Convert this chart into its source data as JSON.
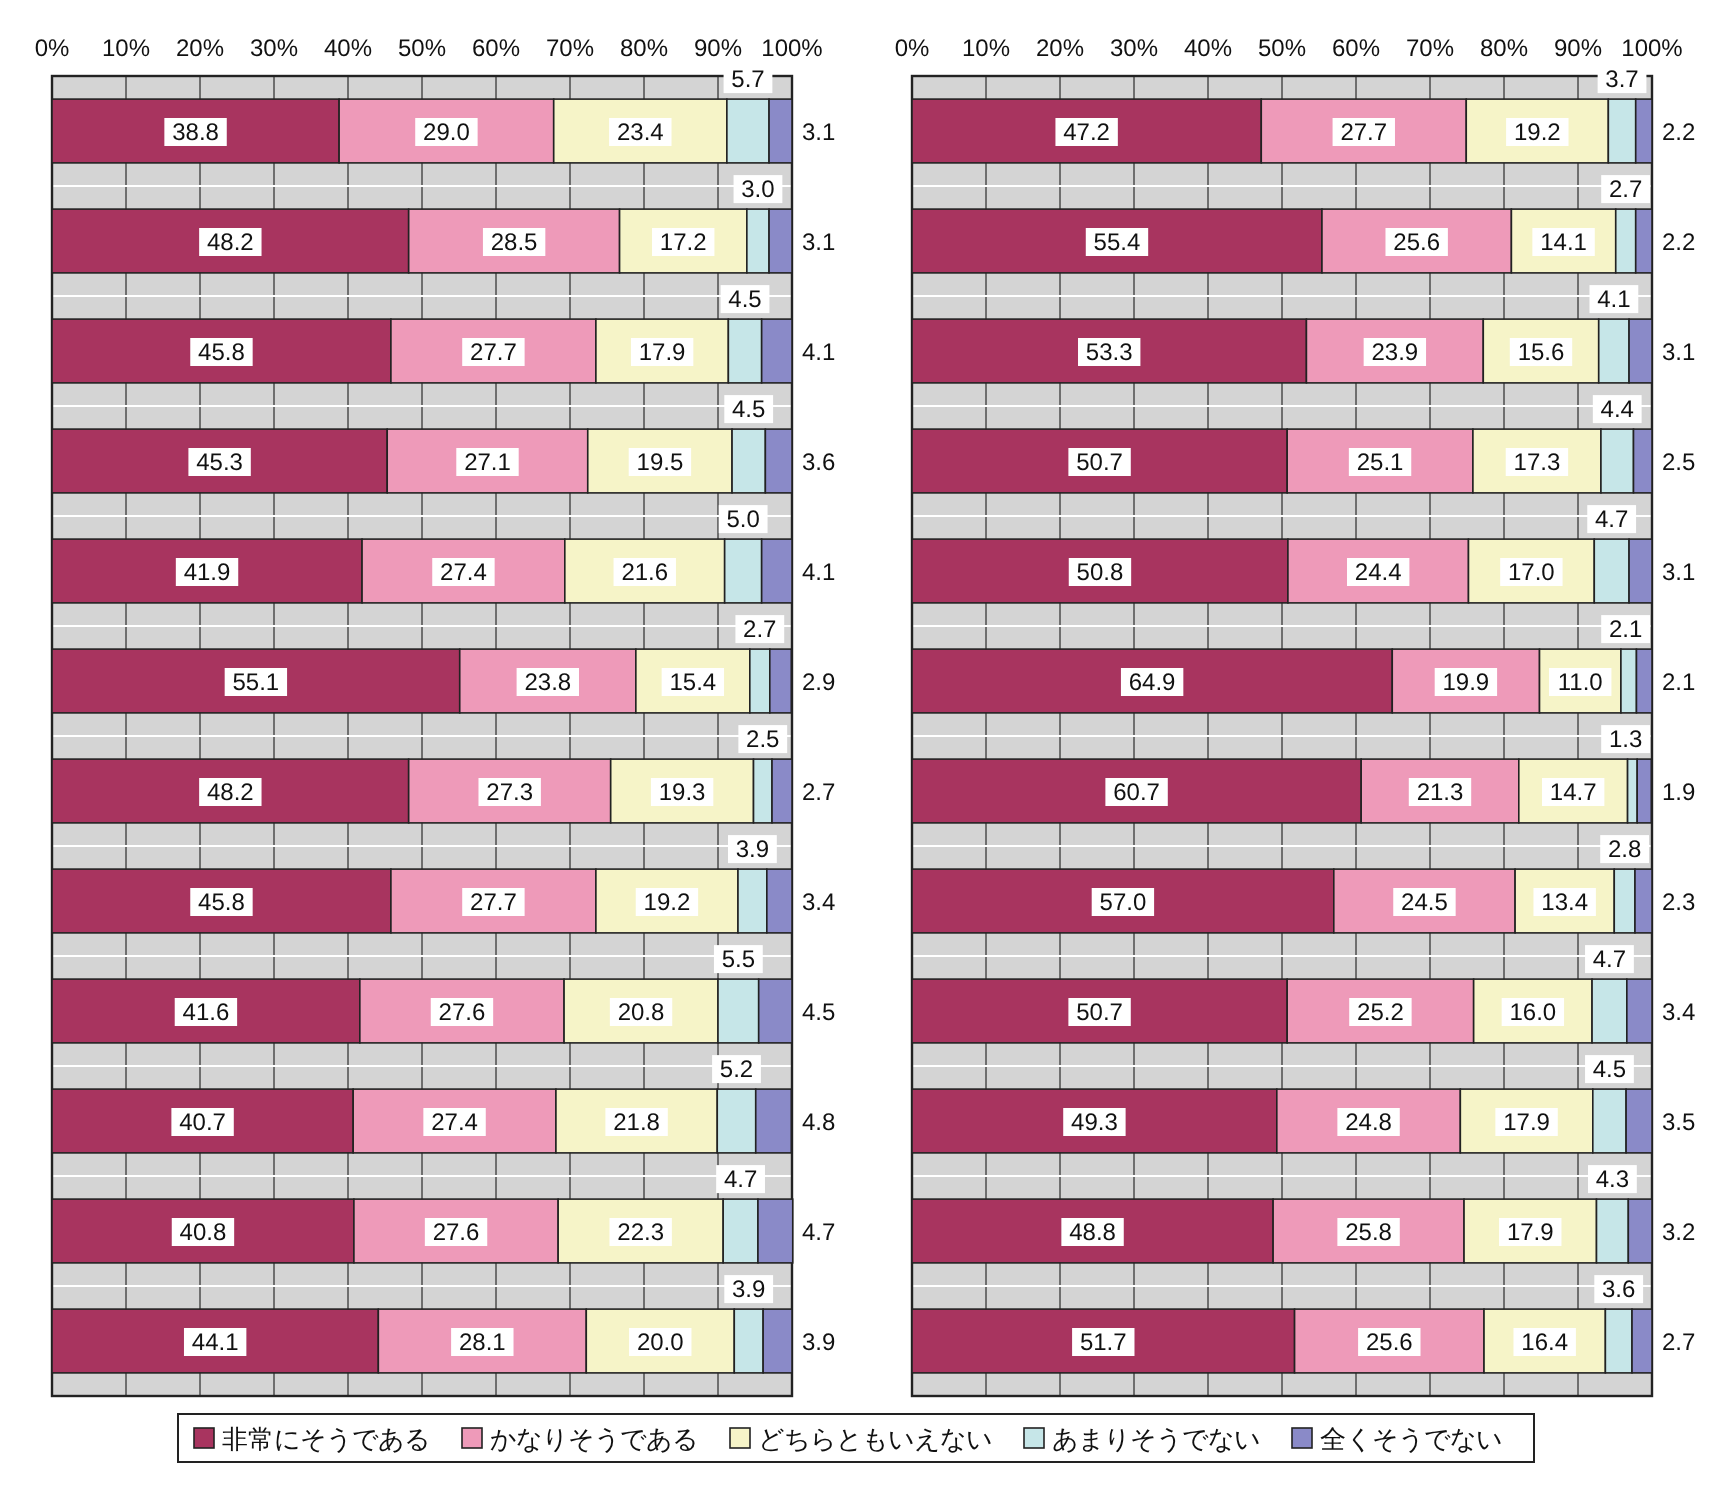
{
  "chart_data": [
    {
      "type": "bar",
      "orientation": "horizontal",
      "stacked": true,
      "grid": true,
      "legend": "bottom",
      "categories": [
        null,
        null,
        null,
        null,
        null,
        null,
        null,
        null,
        null,
        null,
        null,
        null
      ],
      "xlim": [
        0,
        100
      ],
      "xticks": [
        {
          "value": 0,
          "label": "0%"
        },
        {
          "value": 10,
          "label": "10%"
        },
        {
          "value": 20,
          "label": "20%"
        },
        {
          "value": 30,
          "label": "30%"
        },
        {
          "value": 40,
          "label": "40%"
        },
        {
          "value": 50,
          "label": "50%"
        },
        {
          "value": 60,
          "label": "60%"
        },
        {
          "value": 70,
          "label": "70%"
        },
        {
          "value": 80,
          "label": "80%"
        },
        {
          "value": 90,
          "label": "90%"
        },
        {
          "value": 100,
          "label": "100%"
        }
      ],
      "series": [
        {
          "name": "非常にそうである",
          "color": "#a8345f",
          "values": [
            38.8,
            48.2,
            45.8,
            45.3,
            41.9,
            55.1,
            48.2,
            45.8,
            41.6,
            40.7,
            40.8,
            44.1
          ],
          "value_labels": [
            "38.8",
            "48.2",
            "45.8",
            "45.3",
            "41.9",
            "55.1",
            "48.2",
            "45.8",
            "41.6",
            "40.7",
            "40.8",
            "44.1"
          ]
        },
        {
          "name": "かなりそうである",
          "color": "#ee9ab9",
          "values": [
            29.0,
            28.5,
            27.7,
            27.1,
            27.4,
            23.8,
            27.3,
            27.7,
            27.6,
            27.4,
            27.6,
            28.1
          ],
          "value_labels": [
            "29.0",
            "28.5",
            "27.7",
            "27.1",
            "27.4",
            "23.8",
            "27.3",
            "27.7",
            "27.6",
            "27.4",
            "27.6",
            "28.1"
          ]
        },
        {
          "name": "どちらともいえない",
          "color": "#f6f4c8",
          "values": [
            23.4,
            17.2,
            17.9,
            19.5,
            21.6,
            15.4,
            19.3,
            19.2,
            20.8,
            21.8,
            22.3,
            20.0
          ],
          "value_labels": [
            "23.4",
            "17.2",
            "17.9",
            "19.5",
            "21.6",
            "15.4",
            "19.3",
            "19.2",
            "20.8",
            "21.8",
            "22.3",
            "20.0"
          ]
        },
        {
          "name": "あまりそうでない",
          "color": "#c6e6e8",
          "values": [
            5.7,
            3.0,
            4.5,
            4.5,
            5.0,
            2.7,
            2.5,
            3.9,
            5.5,
            5.2,
            4.7,
            3.9
          ],
          "value_labels": [
            "5.7",
            "3.0",
            "4.5",
            "4.5",
            "5.0",
            "2.7",
            "2.5",
            "3.9",
            "5.5",
            "5.2",
            "4.7",
            "3.9"
          ]
        },
        {
          "name": "全くそうでない",
          "color": "#8a8ac8",
          "values": [
            3.1,
            3.1,
            4.1,
            3.6,
            4.1,
            2.9,
            2.7,
            3.4,
            4.5,
            4.8,
            4.7,
            3.9
          ],
          "value_labels": [
            "3.1",
            "3.1",
            "4.1",
            "3.6",
            "4.1",
            "2.9",
            "2.7",
            "3.4",
            "4.5",
            "4.8",
            "4.7",
            "3.9"
          ]
        }
      ]
    },
    {
      "type": "bar",
      "orientation": "horizontal",
      "stacked": true,
      "grid": true,
      "categories": [
        null,
        null,
        null,
        null,
        null,
        null,
        null,
        null,
        null,
        null,
        null,
        null
      ],
      "xlim": [
        0,
        100
      ],
      "xticks": [
        {
          "value": 0,
          "label": "0%"
        },
        {
          "value": 10,
          "label": "10%"
        },
        {
          "value": 20,
          "label": "20%"
        },
        {
          "value": 30,
          "label": "30%"
        },
        {
          "value": 40,
          "label": "40%"
        },
        {
          "value": 50,
          "label": "50%"
        },
        {
          "value": 60,
          "label": "60%"
        },
        {
          "value": 70,
          "label": "70%"
        },
        {
          "value": 80,
          "label": "80%"
        },
        {
          "value": 90,
          "label": "90%"
        },
        {
          "value": 100,
          "label": "100%"
        }
      ],
      "series": [
        {
          "color": "#a8345f",
          "values": [
            47.2,
            55.4,
            53.3,
            50.7,
            50.8,
            64.9,
            60.7,
            57.0,
            50.7,
            49.3,
            48.8,
            51.7
          ],
          "value_labels": [
            "47.2",
            "55.4",
            "53.3",
            "50.7",
            "50.8",
            "64.9",
            "60.7",
            "57.0",
            "50.7",
            "49.3",
            "48.8",
            "51.7"
          ]
        },
        {
          "color": "#ee9ab9",
          "values": [
            27.7,
            25.6,
            23.9,
            25.1,
            24.4,
            19.9,
            21.3,
            24.5,
            25.2,
            24.8,
            25.8,
            25.6
          ],
          "value_labels": [
            "27.7",
            "25.6",
            "23.9",
            "25.1",
            "24.4",
            "19.9",
            "21.3",
            "24.5",
            "25.2",
            "24.8",
            "25.8",
            "25.6"
          ]
        },
        {
          "color": "#f6f4c8",
          "values": [
            19.2,
            14.1,
            15.6,
            17.3,
            17.0,
            11.0,
            14.7,
            13.4,
            16.0,
            17.9,
            17.9,
            16.4
          ],
          "value_labels": [
            "19.2",
            "14.1",
            "15.6",
            "17.3",
            "17.0",
            "11.0",
            "14.7",
            "13.4",
            "16.0",
            "17.9",
            "17.9",
            "16.4"
          ]
        },
        {
          "color": "#c6e6e8",
          "values": [
            3.7,
            2.7,
            4.1,
            4.4,
            4.7,
            2.1,
            1.3,
            2.8,
            4.7,
            4.5,
            4.3,
            3.6
          ],
          "value_labels": [
            "3.7",
            "2.7",
            "4.1",
            "4.4",
            "4.7",
            "2.1",
            "1.3",
            "2.8",
            "4.7",
            "4.5",
            "4.3",
            "3.6"
          ]
        },
        {
          "color": "#8a8ac8",
          "values": [
            2.2,
            2.2,
            3.1,
            2.5,
            3.1,
            2.1,
            1.9,
            2.3,
            3.4,
            3.5,
            3.2,
            2.7
          ],
          "value_labels": [
            "2.2",
            "2.2",
            "3.1",
            "2.5",
            "3.1",
            "2.1",
            "1.9",
            "2.3",
            "3.4",
            "3.5",
            "3.2",
            "2.7"
          ]
        }
      ]
    }
  ]
}
